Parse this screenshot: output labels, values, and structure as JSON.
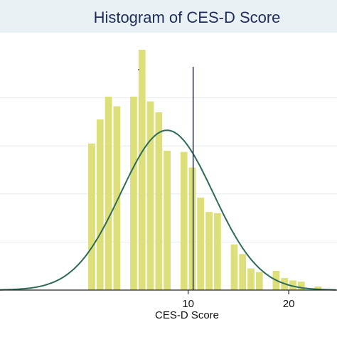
{
  "chart_data": {
    "type": "bar",
    "title": "Histogram of CES-D Score",
    "xlabel": "CES-D Score",
    "ylabel": "",
    "x_ticks": [
      10,
      20
    ],
    "xlim": [
      -8.7,
      24.8
    ],
    "ylim": [
      0,
      1.0
    ],
    "bin_width": 0.833,
    "bins": [
      {
        "x": 0.0,
        "value": 0.61
      },
      {
        "x": 0.833,
        "value": 0.71
      },
      {
        "x": 1.667,
        "value": 0.805
      },
      {
        "x": 2.5,
        "value": 0.765
      },
      {
        "x": 3.333,
        "value": 0.0
      },
      {
        "x": 4.167,
        "value": 0.805
      },
      {
        "x": 5.0,
        "value": 1.0
      },
      {
        "x": 5.833,
        "value": 0.785
      },
      {
        "x": 6.667,
        "value": 0.74
      },
      {
        "x": 7.5,
        "value": 0.58
      },
      {
        "x": 8.333,
        "value": 0.0
      },
      {
        "x": 9.167,
        "value": 0.575
      },
      {
        "x": 10.0,
        "value": 0.51
      },
      {
        "x": 10.833,
        "value": 0.385
      },
      {
        "x": 11.667,
        "value": 0.325
      },
      {
        "x": 12.5,
        "value": 0.32
      },
      {
        "x": 13.333,
        "value": 0.0
      },
      {
        "x": 14.167,
        "value": 0.19
      },
      {
        "x": 15.0,
        "value": 0.15
      },
      {
        "x": 15.833,
        "value": 0.09
      },
      {
        "x": 16.667,
        "value": 0.075
      },
      {
        "x": 17.5,
        "value": 0.0
      },
      {
        "x": 18.333,
        "value": 0.08
      },
      {
        "x": 19.167,
        "value": 0.05
      },
      {
        "x": 20.0,
        "value": 0.04
      },
      {
        "x": 20.833,
        "value": 0.035
      },
      {
        "x": 21.667,
        "value": 0.0
      },
      {
        "x": 22.5,
        "value": 0.015
      }
    ],
    "normal_curve": {
      "mean": 7.9,
      "sd": 4.6,
      "peak": 0.665
    },
    "mean_line": {
      "x": 10.5
    },
    "grid": true,
    "colors": {
      "bar_fill": "#dde07a",
      "curve": "#2d6b57",
      "mean_line": "#1c2a6e",
      "axis": "#222222",
      "grid": "#e5ecee"
    }
  }
}
